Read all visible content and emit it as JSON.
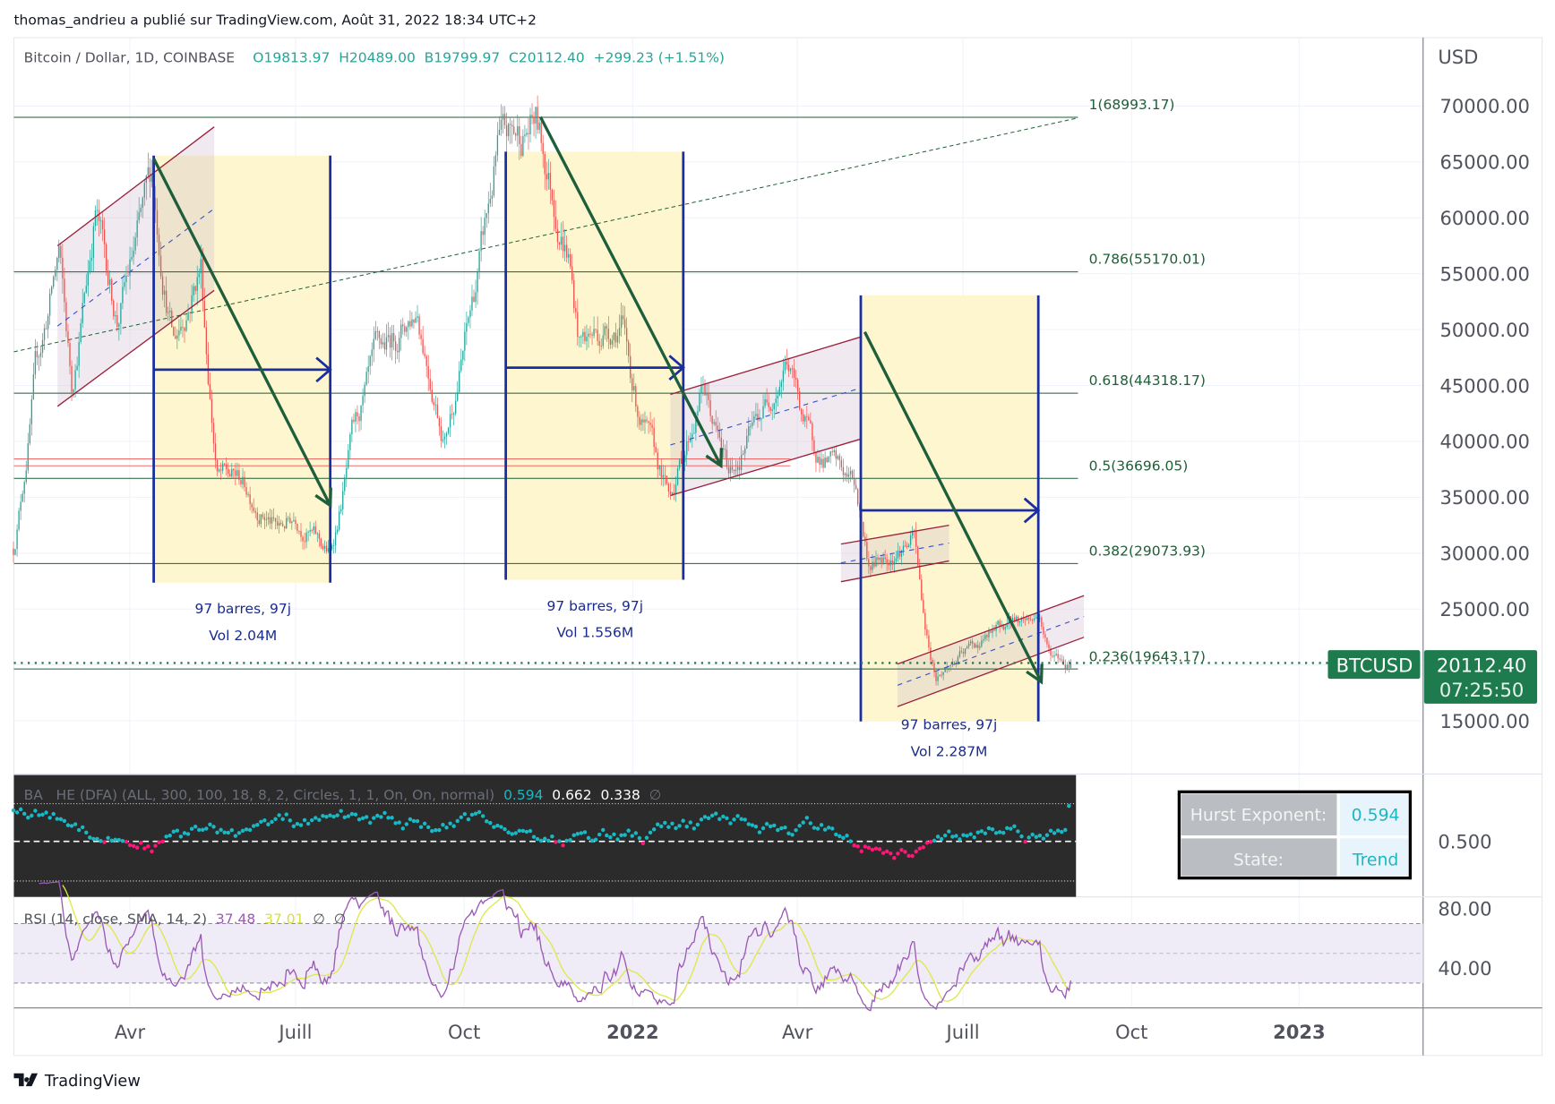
{
  "header": {
    "published": "thomas_andrieu a publié sur TradingView.com, Août 31, 2022 18:34 UTC+2"
  },
  "symbol": {
    "title": "Bitcoin / Dollar, 1D, COINBASE",
    "open": "O19813.97",
    "high": "H20489.00",
    "low": "B19799.97",
    "close": "C20112.40",
    "change": "+299.23 (+1.51%)",
    "ticker": "BTCUSD",
    "last_price": "20112.40",
    "countdown": "07:25:50"
  },
  "price_axis": {
    "currency": "USD",
    "labels": [
      "70000.00",
      "65000.00",
      "60000.00",
      "55000.00",
      "50000.00",
      "45000.00",
      "40000.00",
      "35000.00",
      "30000.00",
      "25000.00",
      "15000.00"
    ]
  },
  "time_axis": {
    "labels": [
      "Avr",
      "Juill",
      "Oct",
      "2022",
      "Avr",
      "Juill",
      "Oct",
      "2023"
    ]
  },
  "fib_levels": [
    {
      "label": "1(68993.17)",
      "price": 68993.17
    },
    {
      "label": "0.786(55170.01)",
      "price": 55170.01
    },
    {
      "label": "0.618(44318.17)",
      "price": 44318.17
    },
    {
      "label": "0.5(36696.05)",
      "price": 36696.05
    },
    {
      "label": "0.382(29073.93)",
      "price": 29073.93
    },
    {
      "label": "0.236(19643.17)",
      "price": 19643.17
    }
  ],
  "date_ranges": [
    {
      "bars": "97 barres, 97j",
      "volume": "Vol 2.04M"
    },
    {
      "bars": "97 barres, 97j",
      "volume": "Vol 1.556M"
    },
    {
      "bars": "97 barres, 97j",
      "volume": "Vol 2.287M"
    }
  ],
  "hurst": {
    "legend": "BA   HE (DFA) (ALL, 300, 100, 18, 8, 2, Circles, 1, 1, On, On, normal)",
    "v1": "0.594",
    "v2": "0.662",
    "v3": "0.338",
    "v4": "∅",
    "axis_label": "0.500",
    "table": {
      "label1": "Hurst Exponent:",
      "value1": "0.594",
      "label2": "State:",
      "value2": "Trend"
    }
  },
  "rsi": {
    "legend": "RSI (14, close, SMA, 14, 2)",
    "v1": "37.48",
    "v2": "37.01",
    "v3": "∅",
    "v4": "∅",
    "axis_labels": [
      "80.00",
      "40.00"
    ]
  },
  "footer": {
    "logo": "TradingView"
  },
  "colors": {
    "up": "#26a69a",
    "down": "#ef5350",
    "fib": "#1e5e36",
    "range": "#1a2ea0",
    "range_fill": "#fdf6cf",
    "arrow": "#1f5e3a",
    "channel": "#9c1f3a",
    "price_tag": "#1e7b4d",
    "rsi": "#9b59b6",
    "rsi_ma": "#dfe84a",
    "hurst_up": "#19b8c4",
    "hurst_down": "#ff1677",
    "hurst_bg": "#2b2b2b"
  },
  "chart_data": {
    "type": "candlestick",
    "interval": "1D",
    "x_range": [
      "2021-01-27",
      "2022-08-31"
    ],
    "y_range": [
      11000,
      75000
    ],
    "approx_closes": [
      [
        "2021-01-27",
        30400
      ],
      [
        "2021-02-08",
        46000
      ],
      [
        "2021-02-21",
        57000
      ],
      [
        "2021-02-28",
        45000
      ],
      [
        "2021-03-13",
        61000
      ],
      [
        "2021-03-25",
        51000
      ],
      [
        "2021-04-13",
        63500
      ],
      [
        "2021-04-25",
        49000
      ],
      [
        "2021-05-10",
        56000
      ],
      [
        "2021-05-19",
        37000
      ],
      [
        "2021-06-01",
        36500
      ],
      [
        "2021-06-22",
        32000
      ],
      [
        "2021-07-01",
        33500
      ],
      [
        "2021-07-20",
        29800
      ],
      [
        "2021-08-01",
        40000
      ],
      [
        "2021-08-14",
        47000
      ],
      [
        "2021-09-06",
        52000
      ],
      [
        "2021-09-21",
        40500
      ],
      [
        "2021-10-01",
        48000
      ],
      [
        "2021-10-20",
        66000
      ],
      [
        "2021-11-10",
        68500
      ],
      [
        "2021-11-28",
        57000
      ],
      [
        "2021-12-04",
        49000
      ],
      [
        "2021-12-27",
        50800
      ],
      [
        "2022-01-05",
        43000
      ],
      [
        "2022-01-22",
        35000
      ],
      [
        "2022-02-10",
        45000
      ],
      [
        "2022-02-24",
        37000
      ],
      [
        "2022-03-28",
        47500
      ],
      [
        "2022-04-11",
        39500
      ],
      [
        "2022-05-05",
        36000
      ],
      [
        "2022-05-12",
        29000
      ],
      [
        "2022-06-06",
        31300
      ],
      [
        "2022-06-13",
        22500
      ],
      [
        "2022-06-18",
        19000
      ],
      [
        "2022-07-08",
        21600
      ],
      [
        "2022-07-30",
        24000
      ],
      [
        "2022-08-14",
        24400
      ],
      [
        "2022-08-19",
        21100
      ],
      [
        "2022-08-31",
        20112.4
      ]
    ],
    "grid": true
  }
}
